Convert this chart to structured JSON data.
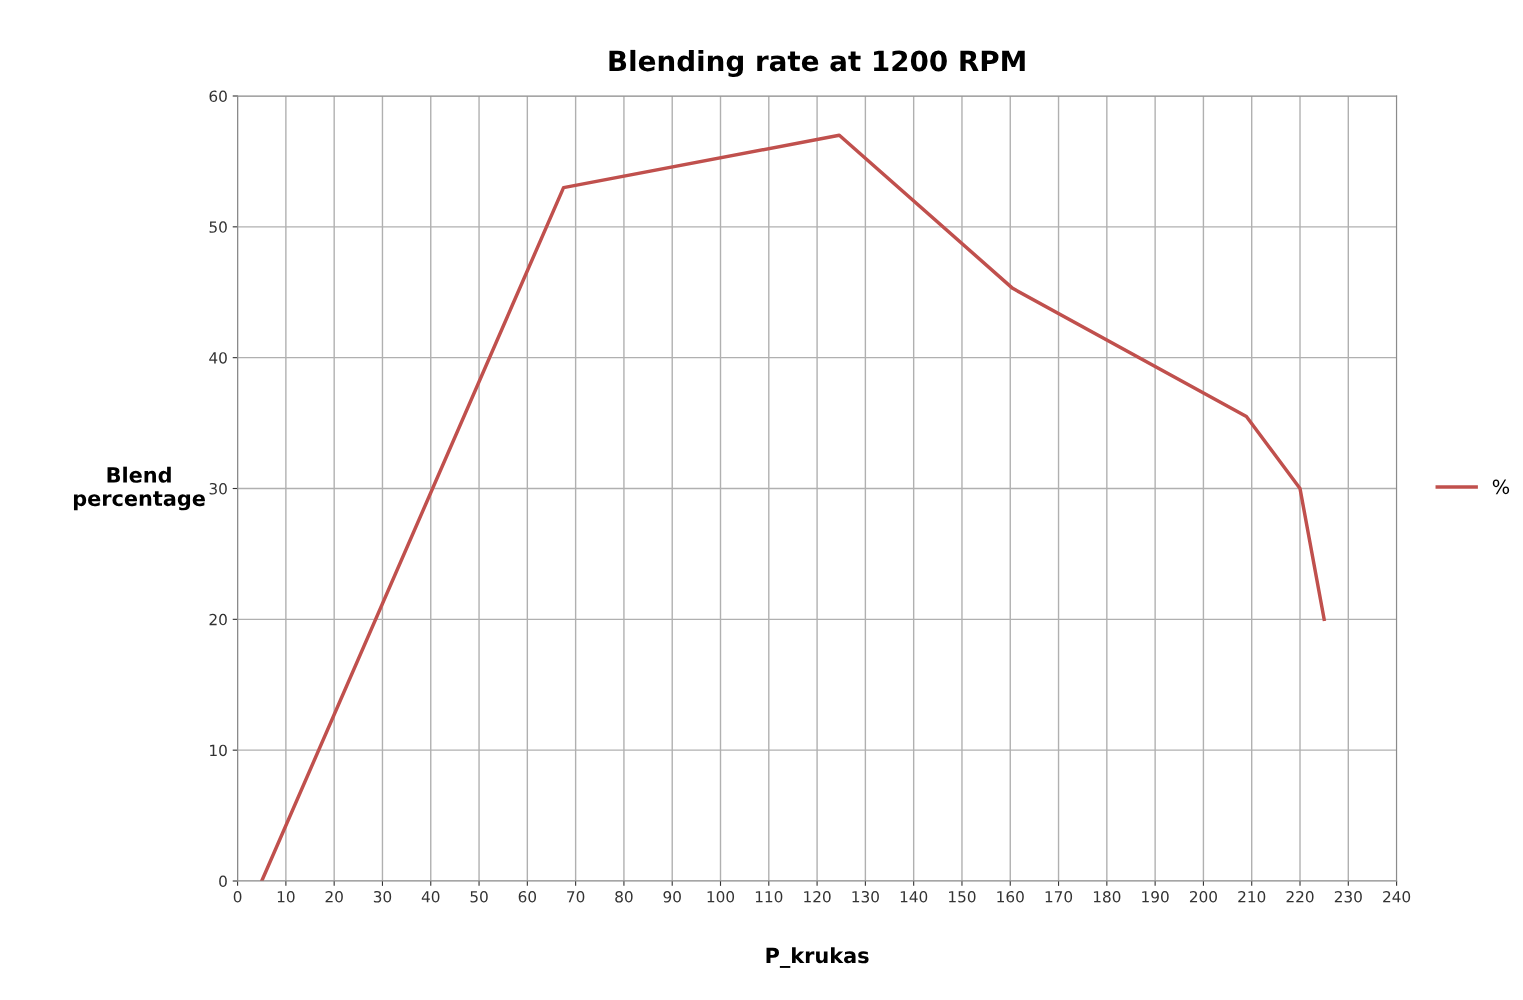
{
  "chart_data": {
    "type": "line",
    "title": "Blending rate at 1200 RPM",
    "xlabel": "P_krukas",
    "ylabel": "Blend percentage",
    "x": [
      5,
      67.5,
      124.6,
      160.5,
      208.9,
      220,
      225
    ],
    "series": [
      {
        "name": "%",
        "color": "#c0504d",
        "values": [
          0,
          53,
          57,
          45.3,
          35.5,
          30,
          20
        ]
      }
    ],
    "xlim": [
      0,
      240
    ],
    "xticks": [
      0,
      10,
      20,
      30,
      40,
      50,
      60,
      70,
      80,
      90,
      100,
      110,
      120,
      130,
      140,
      150,
      160,
      170,
      180,
      190,
      200,
      210,
      220,
      230,
      240
    ],
    "ylim": [
      0,
      60
    ],
    "yticks": [
      0,
      10,
      20,
      30,
      40,
      50,
      60
    ],
    "grid": true,
    "legend": "right",
    "marker": "none",
    "line_style": "solid"
  }
}
